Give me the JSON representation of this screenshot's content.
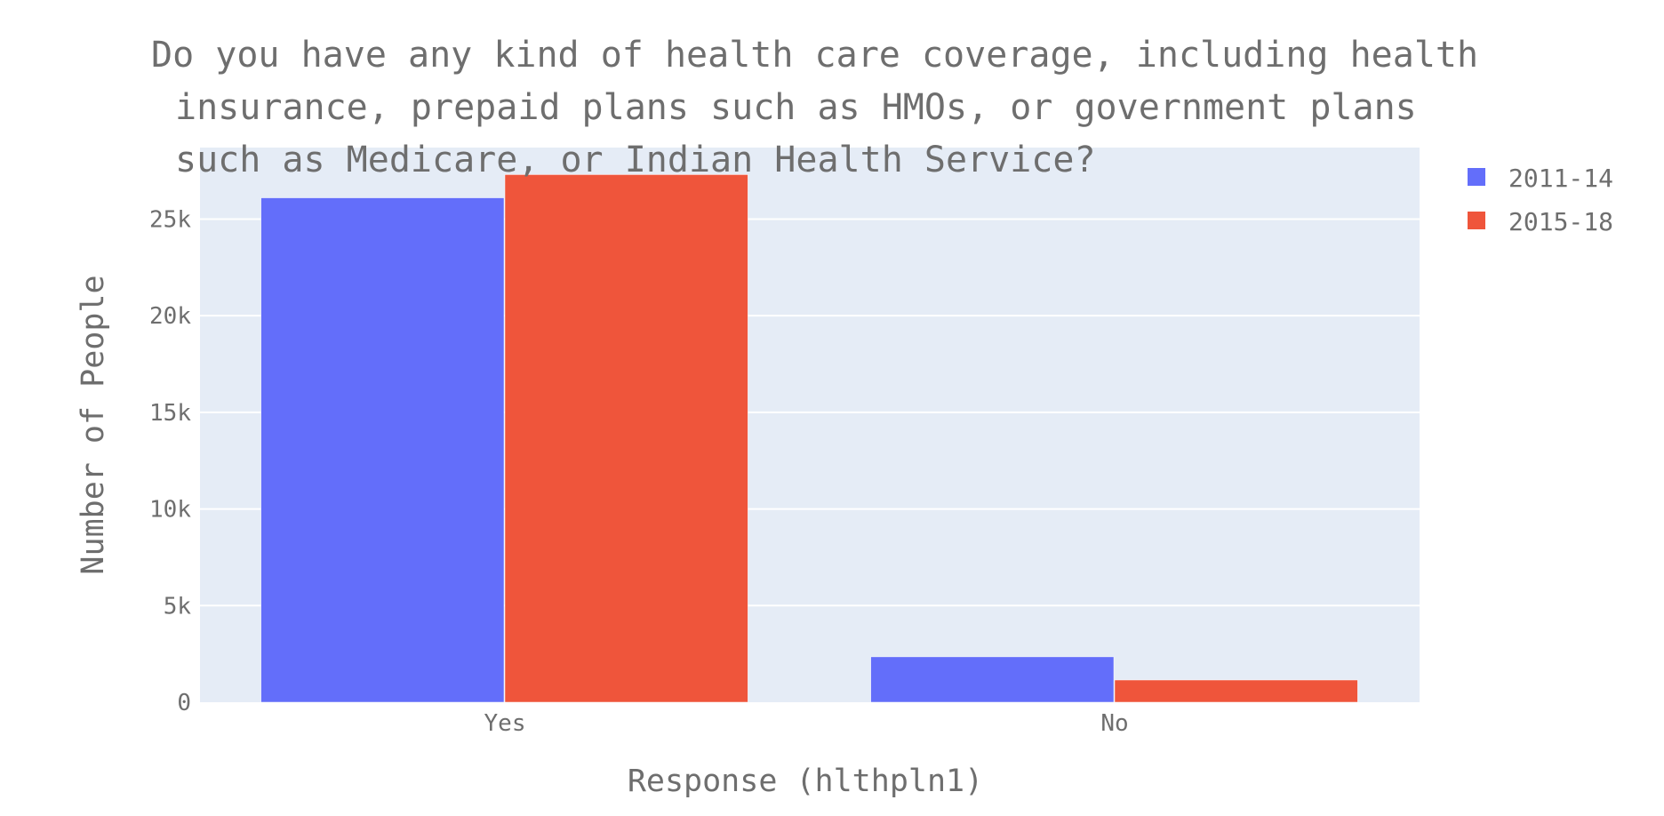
{
  "chart_data": {
    "type": "bar",
    "title_lines": [
      "Do you have any kind of health care coverage, including health",
      "insurance, prepaid plans such as HMOs, or government plans",
      "such as Medicare, or Indian Health Service?"
    ],
    "xlabel": "Response (hlthpln1)",
    "ylabel": "Number of People",
    "categories": [
      "Yes",
      "No"
    ],
    "series": [
      {
        "name": "2011-14",
        "color": "#636efa",
        "values": [
          26100,
          2350
        ]
      },
      {
        "name": "2015-18",
        "color": "#ef553b",
        "values": [
          27300,
          1150
        ]
      }
    ],
    "y_ticks": [
      {
        "value": 0,
        "label": "0"
      },
      {
        "value": 5000,
        "label": "5k"
      },
      {
        "value": 10000,
        "label": "10k"
      },
      {
        "value": 15000,
        "label": "15k"
      },
      {
        "value": 20000,
        "label": "20k"
      },
      {
        "value": 25000,
        "label": "25k"
      }
    ],
    "ylim": [
      0,
      28700
    ],
    "grid": true,
    "legend_position": "top-right",
    "plot_background": "#e5ecf6"
  }
}
